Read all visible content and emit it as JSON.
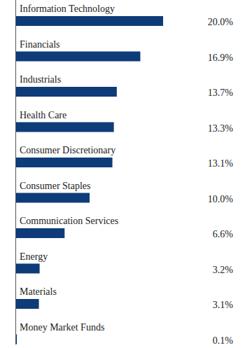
{
  "chart_data": {
    "type": "bar",
    "orientation": "horizontal",
    "categories": [
      "Information Technology",
      "Financials",
      "Industrials",
      "Health Care",
      "Consumer Discretionary",
      "Consumer Staples",
      "Communication Services",
      "Energy",
      "Materials",
      "Money Market Funds"
    ],
    "values": [
      20.0,
      16.9,
      13.7,
      13.3,
      13.1,
      10.0,
      6.6,
      3.2,
      3.1,
      0.1
    ],
    "value_labels": [
      "20.0%",
      "16.9%",
      "13.7%",
      "13.3%",
      "13.1%",
      "10.0%",
      "6.6%",
      "3.2%",
      "3.1%",
      "0.1%"
    ],
    "color": "#0d3c78",
    "xlim": [
      0,
      20
    ],
    "data_labels": true,
    "tick_labels": false,
    "grid": false
  }
}
